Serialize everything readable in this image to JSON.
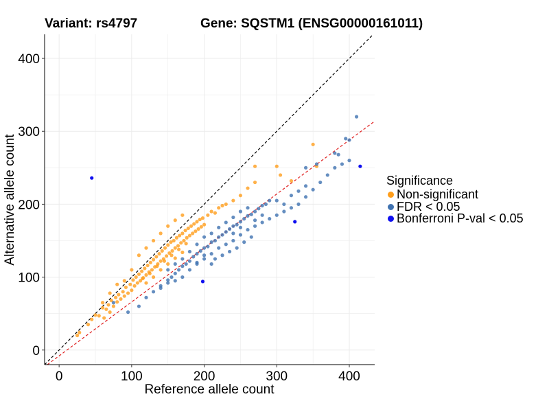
{
  "title": {
    "variant": "Variant: rs4797",
    "gene": "Gene: SQSTM1 (ENSG00000161011)"
  },
  "legend": {
    "title": "Significance",
    "items": [
      {
        "label": "Non-significant",
        "color": "#FF9E1B"
      },
      {
        "label": "FDR < 0.05",
        "color": "#3F72B0"
      },
      {
        "label": "Bonferroni P-val < 0.05",
        "color": "#1010F0"
      }
    ]
  },
  "chart_data": {
    "type": "scatter",
    "title": "Variant: rs4797   Gene: SQSTM1 (ENSG00000161011)",
    "xlabel": "Reference allele count",
    "ylabel": "Alternative allele count",
    "xlim": [
      -20,
      435
    ],
    "ylim": [
      -20,
      433
    ],
    "xticks": [
      0,
      100,
      200,
      300,
      400
    ],
    "yticks": [
      0,
      100,
      200,
      300,
      400
    ],
    "grid": true,
    "reference_lines": [
      {
        "name": "identity",
        "slope": 1.0,
        "intercept": 0,
        "color": "#000000",
        "style": "dashed"
      },
      {
        "name": "fit",
        "slope": 0.74,
        "intercept": -8,
        "color": "#E02020",
        "style": "dashed"
      }
    ],
    "series": [
      {
        "name": "Non-significant",
        "color": "#FF9E1B",
        "points": [
          [
            25,
            20
          ],
          [
            28,
            24
          ],
          [
            40,
            35
          ],
          [
            45,
            42
          ],
          [
            50,
            48
          ],
          [
            55,
            47
          ],
          [
            60,
            58
          ],
          [
            62,
            44
          ],
          [
            65,
            56
          ],
          [
            68,
            62
          ],
          [
            70,
            52
          ],
          [
            72,
            68
          ],
          [
            75,
            60
          ],
          [
            78,
            72
          ],
          [
            80,
            66
          ],
          [
            82,
            76
          ],
          [
            85,
            70
          ],
          [
            88,
            80
          ],
          [
            90,
            74
          ],
          [
            92,
            86
          ],
          [
            95,
            78
          ],
          [
            98,
            90
          ],
          [
            100,
            82
          ],
          [
            102,
            96
          ],
          [
            104,
            88
          ],
          [
            106,
            100
          ],
          [
            108,
            92
          ],
          [
            110,
            104
          ],
          [
            112,
            95
          ],
          [
            114,
            108
          ],
          [
            116,
            99
          ],
          [
            118,
            112
          ],
          [
            120,
            103
          ],
          [
            122,
            116
          ],
          [
            124,
            107
          ],
          [
            126,
            120
          ],
          [
            128,
            110
          ],
          [
            130,
            124
          ],
          [
            132,
            114
          ],
          [
            134,
            128
          ],
          [
            136,
            118
          ],
          [
            138,
            132
          ],
          [
            140,
            122
          ],
          [
            142,
            136
          ],
          [
            144,
            125
          ],
          [
            146,
            140
          ],
          [
            148,
            129
          ],
          [
            150,
            144
          ],
          [
            152,
            133
          ],
          [
            154,
            148
          ],
          [
            156,
            136
          ],
          [
            158,
            150
          ],
          [
            160,
            140
          ],
          [
            162,
            154
          ],
          [
            164,
            143
          ],
          [
            166,
            157
          ],
          [
            168,
            147
          ],
          [
            170,
            160
          ],
          [
            172,
            150
          ],
          [
            174,
            164
          ],
          [
            176,
            154
          ],
          [
            178,
            167
          ],
          [
            180,
            157
          ],
          [
            182,
            170
          ],
          [
            184,
            160
          ],
          [
            186,
            173
          ],
          [
            188,
            163
          ],
          [
            190,
            176
          ],
          [
            192,
            166
          ],
          [
            194,
            179
          ],
          [
            196,
            169
          ],
          [
            198,
            181
          ],
          [
            200,
            172
          ],
          [
            205,
            185
          ],
          [
            210,
            190
          ],
          [
            215,
            188
          ],
          [
            220,
            195
          ],
          [
            225,
            198
          ],
          [
            230,
            200
          ],
          [
            240,
            205
          ],
          [
            250,
            212
          ],
          [
            260,
            222
          ],
          [
            270,
            230
          ],
          [
            110,
            130
          ],
          [
            120,
            140
          ],
          [
            130,
            150
          ],
          [
            140,
            160
          ],
          [
            150,
            170
          ],
          [
            160,
            178
          ],
          [
            170,
            185
          ],
          [
            115,
            98
          ],
          [
            125,
            105
          ],
          [
            135,
            115
          ],
          [
            145,
            122
          ],
          [
            155,
            130
          ],
          [
            165,
            138
          ],
          [
            175,
            146
          ],
          [
            100,
            110
          ],
          [
            90,
            95
          ],
          [
            80,
            90
          ],
          [
            70,
            78
          ],
          [
            60,
            65
          ],
          [
            140,
            110
          ],
          [
            150,
            118
          ],
          [
            160,
            126
          ],
          [
            170,
            134
          ],
          [
            130,
            100
          ],
          [
            120,
            92
          ],
          [
            270,
            252
          ],
          [
            300,
            252
          ],
          [
            305,
            240
          ],
          [
            320,
            232
          ],
          [
            350,
            282
          ],
          [
            355,
            252
          ]
        ]
      },
      {
        "name": "FDR < 0.05",
        "color": "#3F72B0",
        "points": [
          [
            75,
            65
          ],
          [
            95,
            52
          ],
          [
            110,
            60
          ],
          [
            120,
            72
          ],
          [
            130,
            80
          ],
          [
            140,
            88
          ],
          [
            150,
            96
          ],
          [
            155,
            100
          ],
          [
            160,
            105
          ],
          [
            165,
            110
          ],
          [
            170,
            115
          ],
          [
            175,
            118
          ],
          [
            180,
            122
          ],
          [
            185,
            128
          ],
          [
            190,
            132
          ],
          [
            195,
            136
          ],
          [
            200,
            140
          ],
          [
            205,
            142
          ],
          [
            210,
            148
          ],
          [
            215,
            150
          ],
          [
            220,
            155
          ],
          [
            225,
            158
          ],
          [
            230,
            162
          ],
          [
            235,
            166
          ],
          [
            240,
            170
          ],
          [
            245,
            172
          ],
          [
            250,
            176
          ],
          [
            255,
            180
          ],
          [
            260,
            184
          ],
          [
            265,
            186
          ],
          [
            270,
            190
          ],
          [
            275,
            194
          ],
          [
            280,
            198
          ],
          [
            285,
            200
          ],
          [
            290,
            205
          ],
          [
            150,
            110
          ],
          [
            160,
            118
          ],
          [
            170,
            125
          ],
          [
            180,
            135
          ],
          [
            190,
            145
          ],
          [
            200,
            155
          ],
          [
            210,
            160
          ],
          [
            220,
            168
          ],
          [
            230,
            175
          ],
          [
            240,
            182
          ],
          [
            250,
            190
          ],
          [
            260,
            195
          ],
          [
            180,
            110
          ],
          [
            190,
            118
          ],
          [
            200,
            125
          ],
          [
            210,
            132
          ],
          [
            220,
            140
          ],
          [
            230,
            145
          ],
          [
            240,
            150
          ],
          [
            250,
            158
          ],
          [
            260,
            165
          ],
          [
            270,
            170
          ],
          [
            280,
            175
          ],
          [
            290,
            180
          ],
          [
            300,
            185
          ],
          [
            310,
            190
          ],
          [
            320,
            195
          ],
          [
            330,
            200
          ],
          [
            340,
            210
          ],
          [
            350,
            220
          ],
          [
            360,
            230
          ],
          [
            370,
            240
          ],
          [
            380,
            250
          ],
          [
            390,
            255
          ],
          [
            400,
            260
          ],
          [
            320,
            212
          ],
          [
            330,
            218
          ],
          [
            340,
            225
          ],
          [
            300,
            205
          ],
          [
            310,
            200
          ],
          [
            280,
            185
          ],
          [
            270,
            178
          ],
          [
            250,
            168
          ],
          [
            240,
            160
          ],
          [
            200,
            130
          ],
          [
            190,
            120
          ],
          [
            170,
            100
          ],
          [
            160,
            95
          ],
          [
            150,
            92
          ],
          [
            140,
            85
          ],
          [
            210,
            118
          ],
          [
            215,
            125
          ],
          [
            225,
            130
          ],
          [
            235,
            135
          ],
          [
            245,
            140
          ],
          [
            255,
            148
          ],
          [
            265,
            155
          ],
          [
            340,
            250
          ],
          [
            355,
            255
          ],
          [
            380,
            270
          ],
          [
            385,
            268
          ],
          [
            395,
            290
          ],
          [
            400,
            288
          ],
          [
            410,
            320
          ]
        ]
      },
      {
        "name": "Bonferroni P-val < 0.05",
        "color": "#1010F0",
        "points": [
          [
            45,
            236
          ],
          [
            198,
            94
          ],
          [
            325,
            176
          ],
          [
            415,
            252
          ]
        ]
      }
    ]
  }
}
